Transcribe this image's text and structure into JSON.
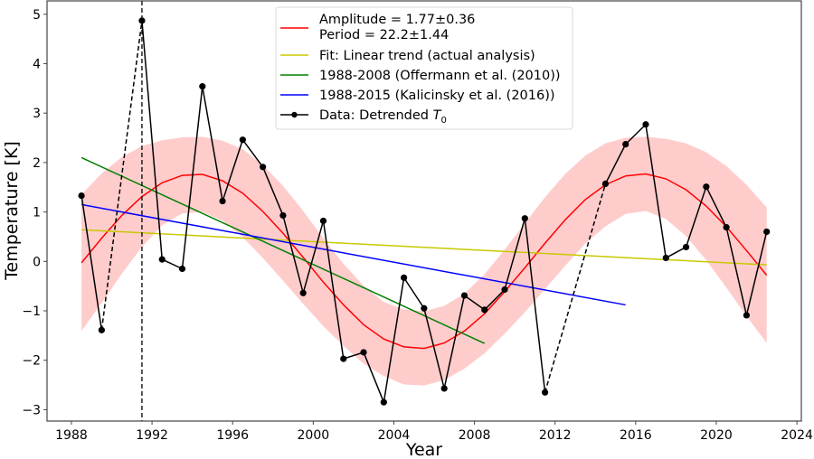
{
  "chart_data": {
    "type": "line",
    "title": "",
    "xlabel": "Year",
    "ylabel": "Temperature [K]",
    "xlim": [
      1986.79,
      2024.22
    ],
    "ylim": [
      -3.23,
      5.27
    ],
    "grid": false,
    "legend_position": "top-center",
    "xticks": [
      1988,
      1992,
      1996,
      2000,
      2004,
      2008,
      2012,
      2016,
      2020,
      2024
    ],
    "xtick_labels": [
      "1988",
      "1992",
      "1996",
      "2000",
      "2004",
      "2008",
      "2012",
      "2016",
      "2020",
      "2024"
    ],
    "yticks": [
      5,
      4,
      3,
      2,
      1,
      0,
      -1,
      -2,
      -3
    ],
    "ytick_labels": [
      "5",
      "4",
      "3",
      "2",
      "1",
      "0",
      "−1",
      "−2",
      "−3"
    ],
    "vertical_marker": {
      "x": 1991.5,
      "style": "dashed",
      "color": "#000000"
    },
    "series": [
      {
        "name": "Data: Detrended T0",
        "legend_main": "Data: Detrended ",
        "legend_symbol": "T",
        "legend_sub": "0",
        "kind": "line-marker",
        "color": "#000000",
        "x": [
          1988.5,
          1989.5,
          1991.5,
          1992.5,
          1993.5,
          1994.5,
          1995.5,
          1996.5,
          1997.5,
          1998.5,
          1999.5,
          2000.5,
          2001.5,
          2002.5,
          2003.5,
          2004.5,
          2005.5,
          2006.5,
          2007.5,
          2008.5,
          2009.5,
          2010.5,
          2011.5,
          2014.5,
          2015.5,
          2016.5,
          2017.5,
          2018.5,
          2019.5,
          2020.5,
          2021.5,
          2022.5
        ],
        "y": [
          1.33,
          -1.39,
          4.87,
          0.04,
          -0.15,
          3.54,
          1.22,
          2.46,
          1.91,
          0.93,
          -0.64,
          0.82,
          -1.97,
          -1.84,
          -2.85,
          -0.33,
          -0.95,
          -2.57,
          -0.69,
          -0.98,
          -0.57,
          0.87,
          -2.65,
          1.57,
          2.37,
          2.77,
          0.07,
          0.29,
          1.51,
          0.69,
          -1.09,
          0.6
        ],
        "dashed_gaps": [
          [
            1989.5,
            1991.5
          ],
          [
            2011.5,
            2014.5
          ]
        ]
      },
      {
        "name": "Amplitude = 1.77±0.36",
        "legend_line2": "Period = 22.2±1.44",
        "kind": "line",
        "color": "#ff0000",
        "x": [
          1988.5,
          1989.5,
          1990.5,
          1991.5,
          1992.5,
          1993.5,
          1994.5,
          1995.5,
          1996.5,
          1997.5,
          1998.5,
          1999.5,
          2000.5,
          2001.5,
          2002.5,
          2003.5,
          2004.5,
          2005.5,
          2006.5,
          2007.5,
          2008.5,
          2009.5,
          2010.5,
          2011.5,
          2012.5,
          2013.5,
          2014.5,
          2015.5,
          2016.5,
          2017.5,
          2018.5,
          2019.5,
          2020.5,
          2021.5,
          2022.5
        ],
        "y": [
          -0.03,
          0.47,
          0.93,
          1.31,
          1.59,
          1.74,
          1.76,
          1.63,
          1.38,
          1.01,
          0.57,
          0.08,
          -0.42,
          -0.88,
          -1.28,
          -1.57,
          -1.73,
          -1.76,
          -1.65,
          -1.41,
          -1.06,
          -0.61,
          -0.13,
          0.37,
          0.84,
          1.25,
          1.55,
          1.73,
          1.77,
          1.67,
          1.45,
          1.12,
          0.7,
          0.22,
          -0.28
        ],
        "band_color": "#ffcccc",
        "band_upper": [
          1.35,
          1.78,
          2.11,
          2.33,
          2.45,
          2.51,
          2.52,
          2.44,
          2.27,
          1.95,
          1.53,
          1.02,
          0.47,
          -0.05,
          -0.49,
          -0.82,
          -0.97,
          -1.01,
          -0.9,
          -0.65,
          -0.26,
          0.24,
          0.77,
          1.3,
          1.77,
          2.14,
          2.39,
          2.5,
          2.52,
          2.48,
          2.39,
          2.21,
          1.93,
          1.55,
          1.09
        ],
        "band_lower": [
          -1.41,
          -0.84,
          -0.25,
          0.29,
          0.73,
          0.97,
          1.0,
          0.82,
          0.49,
          0.07,
          -0.39,
          -0.86,
          -1.31,
          -1.71,
          -2.07,
          -2.32,
          -2.49,
          -2.51,
          -2.4,
          -2.17,
          -1.86,
          -1.46,
          -1.03,
          -0.56,
          -0.09,
          0.36,
          0.71,
          0.96,
          1.02,
          0.86,
          0.51,
          0.03,
          -0.53,
          -1.11,
          -1.65
        ]
      },
      {
        "name": "Fit: Linear trend (actual analysis)",
        "kind": "line",
        "color": "#c8c800",
        "x": [
          1988.5,
          2022.5
        ],
        "y": [
          0.64,
          -0.07
        ]
      },
      {
        "name": "1988-2008 (Offermann et al. (2010))",
        "kind": "line",
        "color": "#008000",
        "x": [
          1988.5,
          2008.5
        ],
        "y": [
          2.1,
          -1.66
        ]
      },
      {
        "name": "1988-2015 (Kalicinsky et al. (2016))",
        "kind": "line",
        "color": "#0000ff",
        "x": [
          1988.5,
          2015.5
        ],
        "y": [
          1.15,
          -0.88
        ]
      }
    ]
  }
}
